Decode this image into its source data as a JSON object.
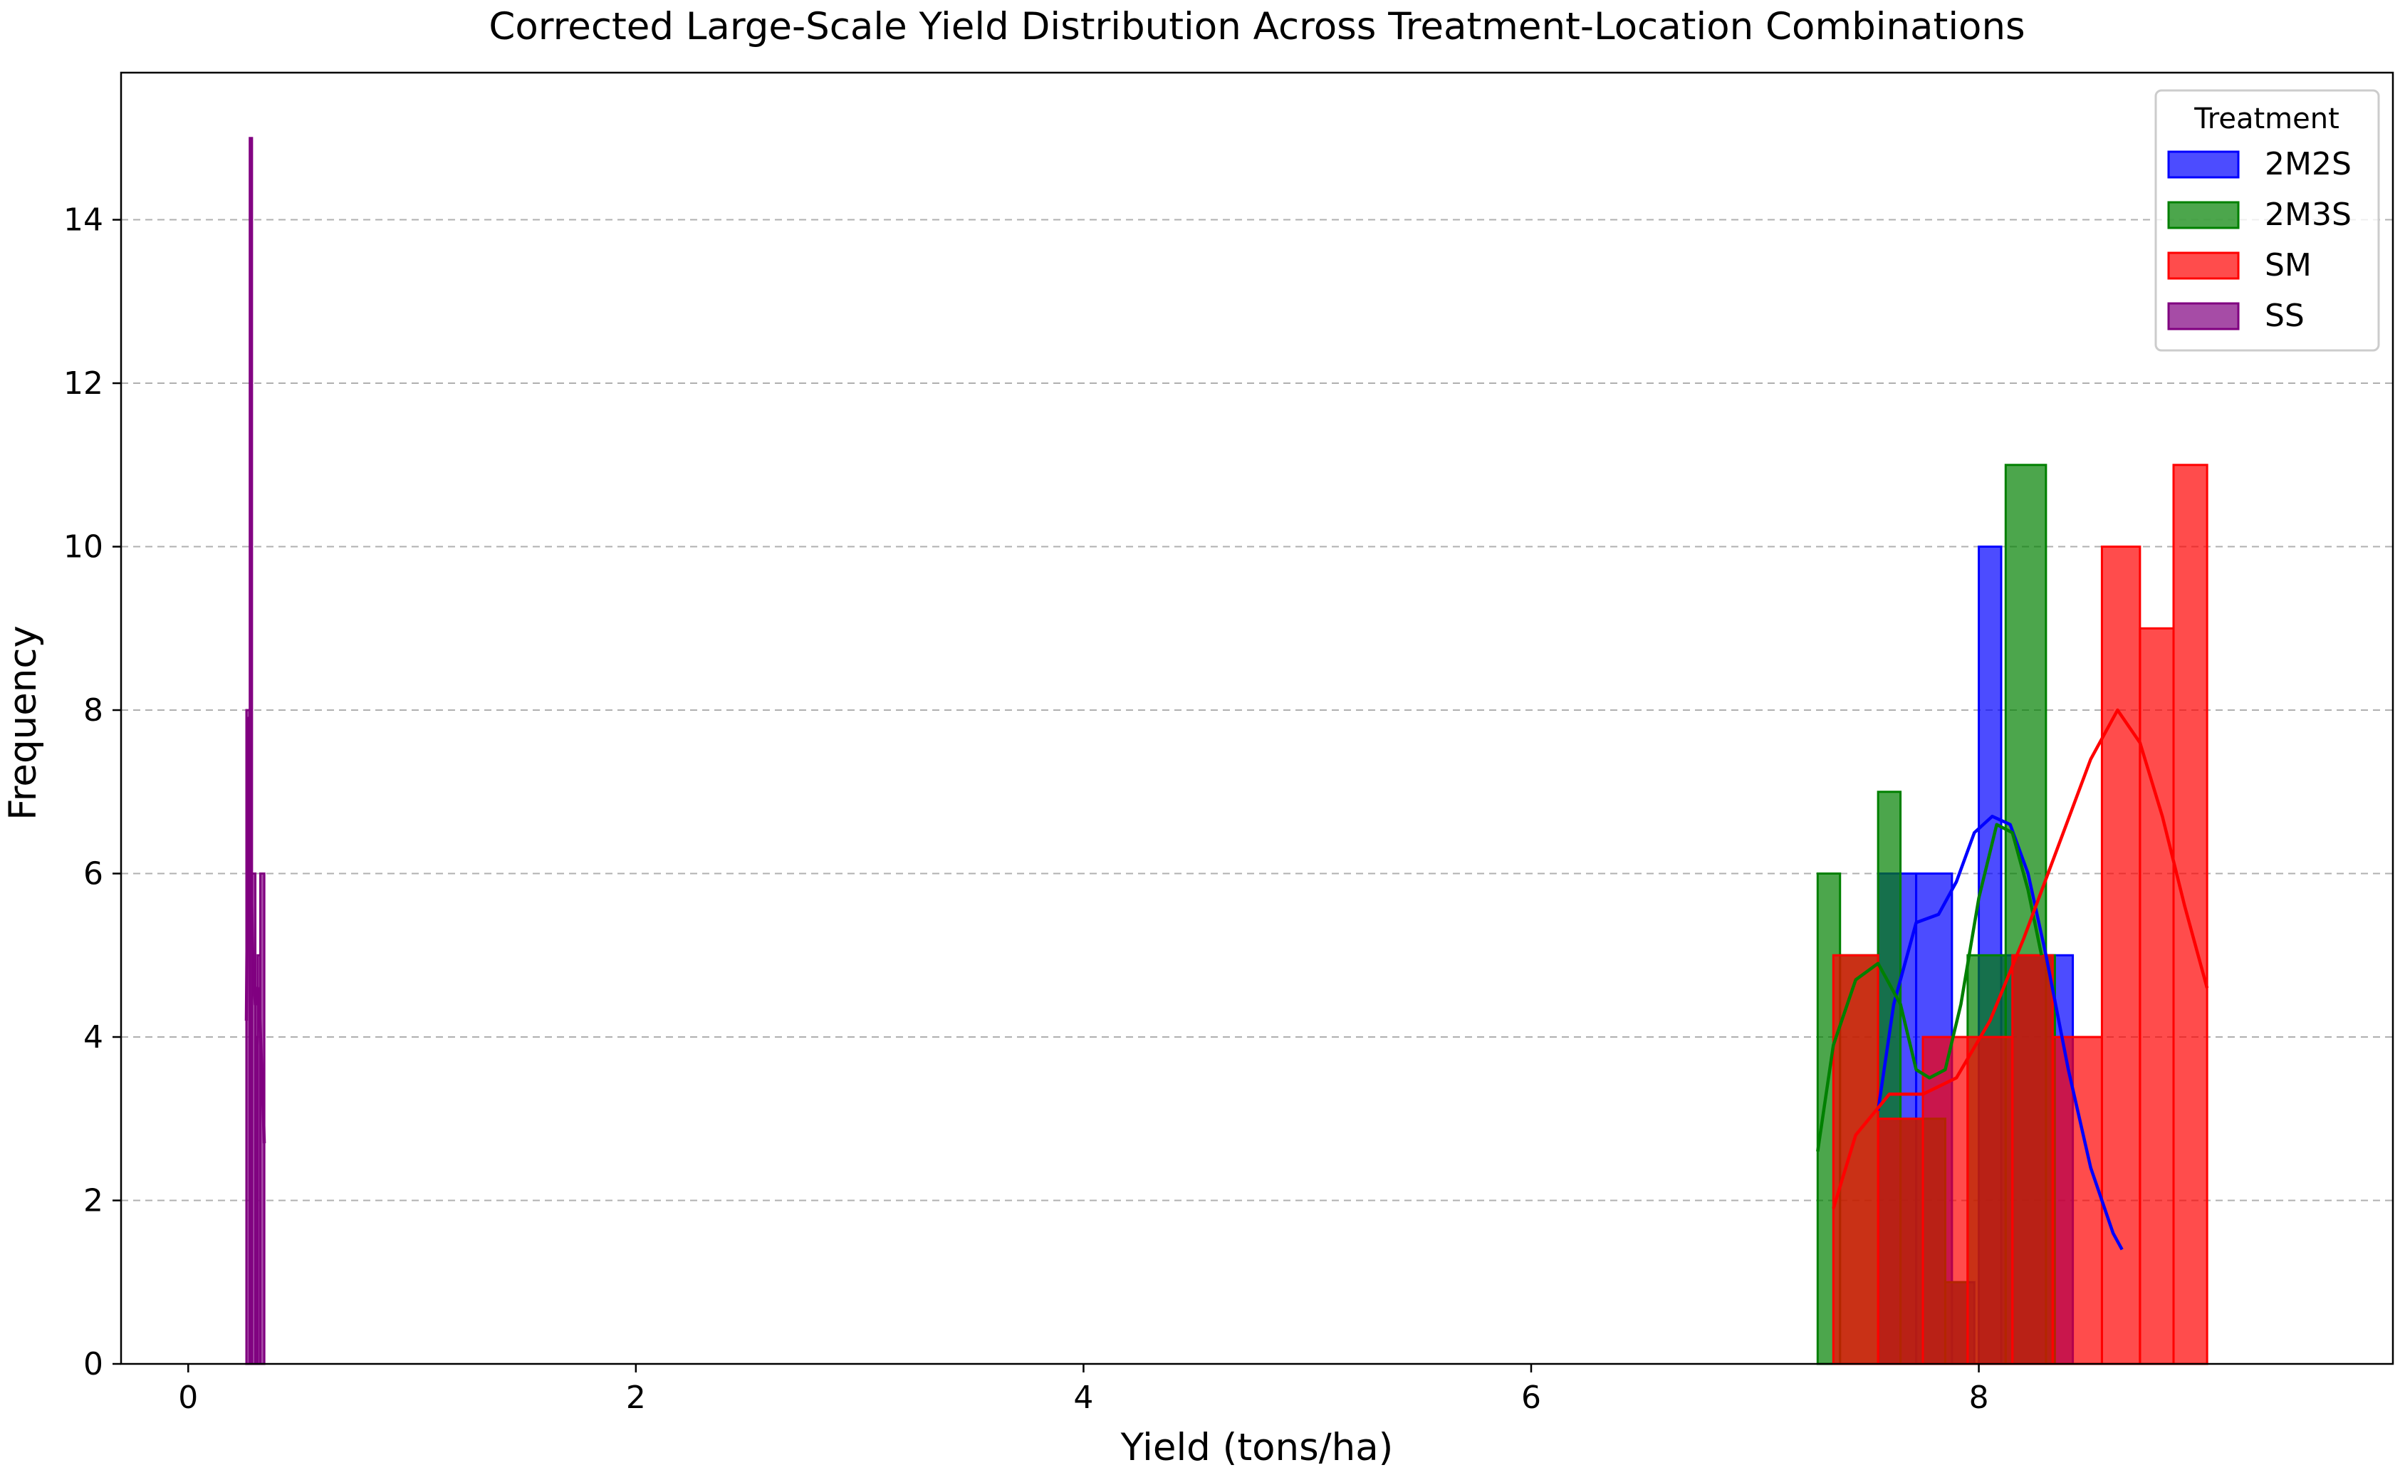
{
  "chart_data": {
    "type": "histogram",
    "title": "Corrected Large-Scale Yield Distribution Across Treatment-Location Combinations",
    "xlabel": "Yield (tons/ha)",
    "ylabel": "Frequency",
    "xlim": [
      -0.3,
      9.85
    ],
    "ylim": [
      0,
      15.8
    ],
    "xticks": [
      0,
      2,
      4,
      6,
      8
    ],
    "yticks": [
      0,
      2,
      4,
      6,
      8,
      10,
      12,
      14
    ],
    "grid": "y dashed",
    "legend": {
      "title": "Treatment",
      "placement": "top-right"
    },
    "series": [
      {
        "name": "2M2S",
        "color": "#0000ff",
        "bins": [
          [
            7.55,
            7.72,
            6
          ],
          [
            7.72,
            7.88,
            6
          ],
          [
            7.88,
            7.98,
            1
          ],
          [
            8.0,
            8.1,
            10
          ],
          [
            8.1,
            8.42,
            5
          ]
        ],
        "kde": {
          "x": [
            7.55,
            7.62,
            7.72,
            7.82,
            7.9,
            7.98,
            8.06,
            8.14,
            8.22,
            8.3,
            8.4,
            8.5,
            8.6,
            8.64
          ],
          "y": [
            3.1,
            4.4,
            5.4,
            5.5,
            5.9,
            6.5,
            6.7,
            6.6,
            6.0,
            5.0,
            3.6,
            2.4,
            1.6,
            1.4
          ]
        }
      },
      {
        "name": "2M3S",
        "color": "#008000",
        "bins": [
          [
            7.28,
            7.38,
            6
          ],
          [
            7.38,
            7.55,
            5
          ],
          [
            7.55,
            7.65,
            7
          ],
          [
            7.65,
            7.85,
            3
          ],
          [
            7.85,
            7.95,
            1
          ],
          [
            7.95,
            8.12,
            5
          ],
          [
            8.12,
            8.3,
            11
          ],
          [
            8.3,
            8.34,
            5
          ]
        ],
        "kde": {
          "x": [
            7.28,
            7.35,
            7.45,
            7.55,
            7.65,
            7.72,
            7.78,
            7.85,
            7.92,
            8.0,
            8.08,
            8.15,
            8.22,
            8.28
          ],
          "y": [
            2.6,
            3.9,
            4.7,
            4.9,
            4.4,
            3.6,
            3.5,
            3.6,
            4.4,
            5.7,
            6.6,
            6.5,
            5.8,
            5.0
          ]
        }
      },
      {
        "name": "SM",
        "color": "#ff0000",
        "bins": [
          [
            7.35,
            7.55,
            5
          ],
          [
            7.55,
            7.75,
            3
          ],
          [
            7.75,
            7.95,
            4
          ],
          [
            7.95,
            8.15,
            4
          ],
          [
            8.15,
            8.33,
            5
          ],
          [
            8.33,
            8.55,
            4
          ],
          [
            8.55,
            8.72,
            10
          ],
          [
            8.72,
            8.87,
            9
          ],
          [
            8.87,
            9.02,
            11
          ]
        ],
        "kde": {
          "x": [
            7.35,
            7.45,
            7.6,
            7.75,
            7.9,
            8.05,
            8.2,
            8.35,
            8.5,
            8.62,
            8.72,
            8.82,
            8.92,
            9.02
          ],
          "y": [
            1.9,
            2.8,
            3.3,
            3.3,
            3.5,
            4.2,
            5.2,
            6.3,
            7.4,
            8.0,
            7.6,
            6.7,
            5.6,
            4.6
          ]
        }
      },
      {
        "name": "SS",
        "color": "#800080",
        "bins": [
          [
            0.26,
            0.275,
            8
          ],
          [
            0.275,
            0.285,
            15
          ],
          [
            0.285,
            0.3,
            6
          ],
          [
            0.3,
            0.31,
            4
          ],
          [
            0.31,
            0.322,
            5
          ],
          [
            0.322,
            0.34,
            6
          ]
        ],
        "kde": {
          "x": [
            0.26,
            0.265,
            0.27,
            0.275,
            0.28,
            0.29,
            0.3,
            0.31,
            0.32,
            0.33,
            0.34
          ],
          "y": [
            4.2,
            6.0,
            7.9,
            7.4,
            6.0,
            4.8,
            4.4,
            4.6,
            4.2,
            3.5,
            2.7
          ]
        }
      }
    ]
  }
}
